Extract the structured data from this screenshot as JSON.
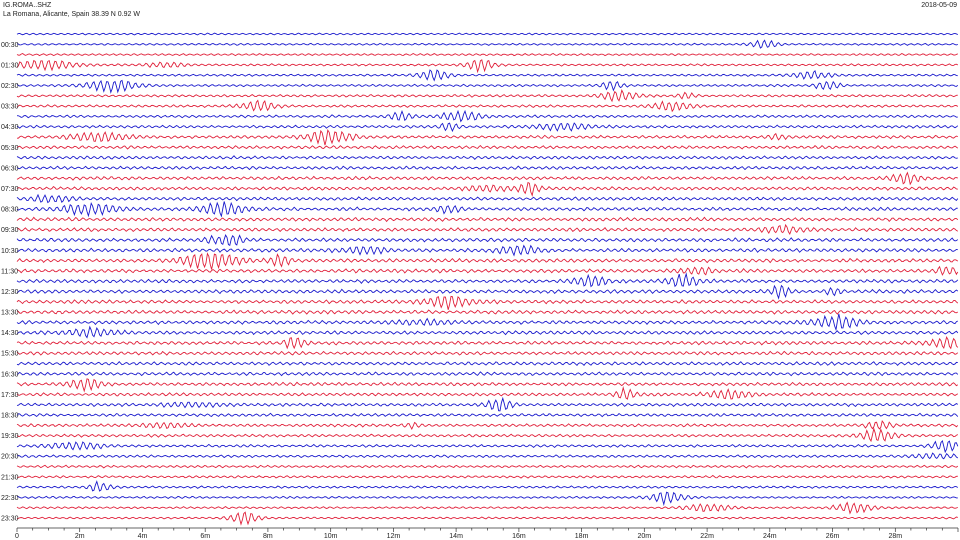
{
  "header": {
    "station": "IG.ROMA..SHZ",
    "location": "La Romana, Alicante, Spain  38.39 N 0.92 W",
    "date": "2018-05-09"
  },
  "colors": {
    "trace_a": "#1a1acc",
    "trace_b": "#e0203a",
    "axis": "#333333"
  },
  "chart_data": {
    "type": "line",
    "title": "",
    "xlabel": "",
    "ylabel": "",
    "x_range_minutes": [
      0,
      30
    ],
    "x_tick_labels": [
      "0",
      "2m",
      "4m",
      "6m",
      "8m",
      "10m",
      "12m",
      "14m",
      "16m",
      "18m",
      "20m",
      "22m",
      "24m",
      "26m",
      "28m"
    ],
    "x_tick_values": [
      0,
      2,
      4,
      6,
      8,
      10,
      12,
      14,
      16,
      18,
      20,
      22,
      24,
      26,
      28
    ],
    "row_labels": [
      "00:30",
      "01:30",
      "02:30",
      "03:30",
      "04:30",
      "05:30",
      "06:30",
      "07:30",
      "08:30",
      "09:30",
      "10:30",
      "11:30",
      "12:30",
      "13:30",
      "14:30",
      "15:30",
      "16:30",
      "17:30",
      "18:30",
      "19:30",
      "20:30",
      "21:30",
      "22:30",
      "23:30"
    ],
    "traces_per_hour": 2,
    "color_pattern": [
      "trace_a",
      "trace_a",
      "trace_b",
      "trace_b"
    ],
    "grid": false
  }
}
